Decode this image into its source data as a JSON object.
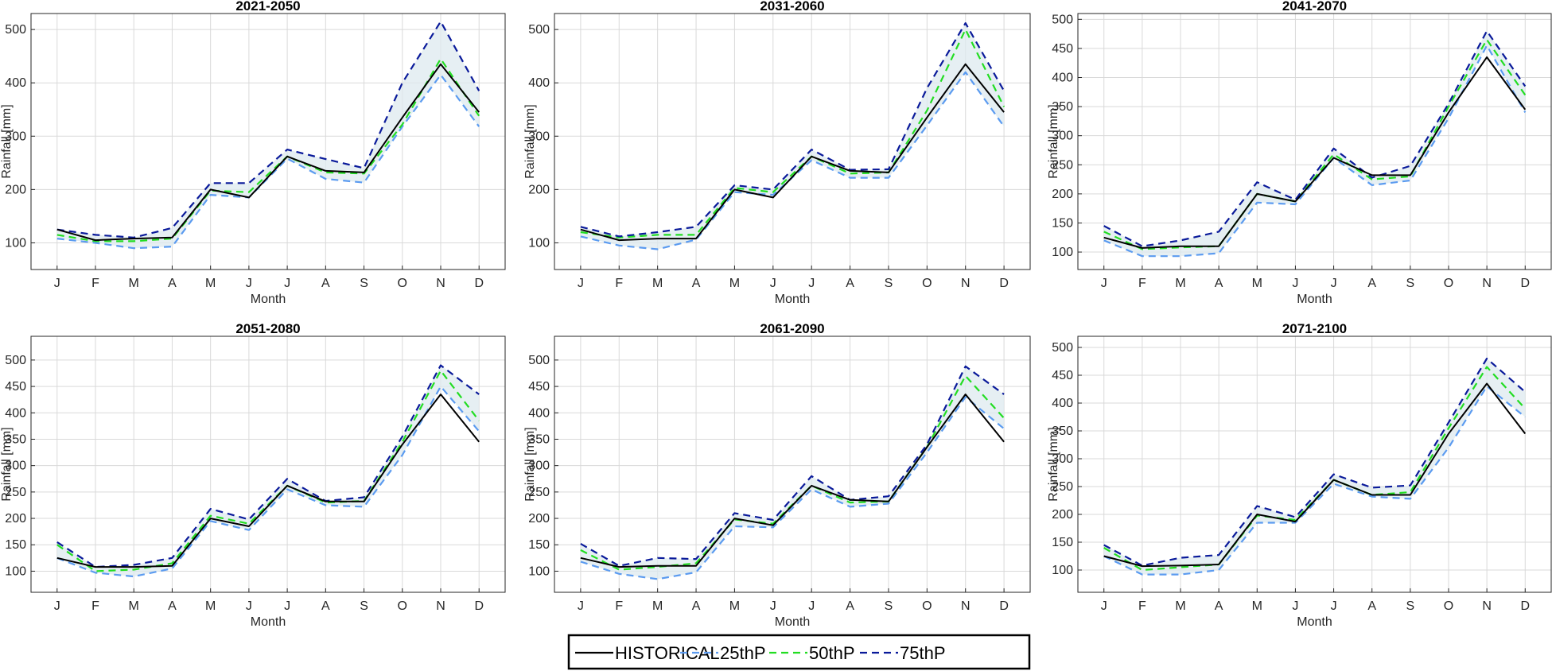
{
  "legend": {
    "entries": [
      {
        "label": "HISTORICAL",
        "color": "#000000",
        "dash": "solid"
      },
      {
        "label": "25thP",
        "color": "#5b9bf0",
        "dash": "dashed"
      },
      {
        "label": "50thP",
        "color": "#22dd22",
        "dash": "dashed"
      },
      {
        "label": "75thP",
        "color": "#0a1a9a",
        "dash": "dashed"
      }
    ]
  },
  "colors": {
    "historical": "#000000",
    "p25": "#5b9bf0",
    "p50": "#22dd22",
    "p75": "#0a1a9a",
    "band": "#dde9ef",
    "grid": "#d9d9d9",
    "axes": "#262626"
  },
  "chart_data": [
    {
      "type": "line",
      "title": "2021-2050",
      "xlabel": "Month",
      "ylabel": "Rainfall [mm]",
      "categories": [
        "J",
        "F",
        "M",
        "A",
        "M",
        "J",
        "J",
        "A",
        "S",
        "O",
        "N",
        "D"
      ],
      "ylim": [
        50,
        530
      ],
      "yticks": [
        100,
        200,
        300,
        400,
        500
      ],
      "grid": true,
      "shaded_band": "between 25thP and 75thP",
      "series": [
        {
          "name": "HISTORICAL",
          "values": [
            125,
            105,
            108,
            110,
            200,
            185,
            262,
            235,
            232,
            335,
            435,
            345
          ]
        },
        {
          "name": "25thP",
          "values": [
            108,
            100,
            90,
            93,
            190,
            185,
            258,
            220,
            213,
            318,
            415,
            318
          ]
        },
        {
          "name": "50thP",
          "values": [
            115,
            103,
            103,
            108,
            198,
            195,
            262,
            232,
            230,
            322,
            445,
            338
          ]
        },
        {
          "name": "75thP",
          "values": [
            125,
            115,
            110,
            128,
            212,
            212,
            275,
            257,
            240,
            400,
            515,
            385
          ]
        }
      ]
    },
    {
      "type": "line",
      "title": "2031-2060",
      "xlabel": "Month",
      "ylabel": "Rainfall [mm]",
      "categories": [
        "J",
        "F",
        "M",
        "A",
        "M",
        "J",
        "J",
        "A",
        "S",
        "O",
        "N",
        "D"
      ],
      "ylim": [
        50,
        530
      ],
      "yticks": [
        100,
        200,
        300,
        400,
        500
      ],
      "grid": true,
      "shaded_band": "between 25thP and 75thP",
      "series": [
        {
          "name": "HISTORICAL",
          "values": [
            125,
            105,
            108,
            108,
            200,
            185,
            262,
            235,
            232,
            335,
            435,
            345
          ]
        },
        {
          "name": "25thP",
          "values": [
            112,
            95,
            88,
            106,
            195,
            190,
            255,
            222,
            222,
            320,
            420,
            318
          ]
        },
        {
          "name": "50thP",
          "values": [
            120,
            110,
            115,
            115,
            203,
            195,
            262,
            230,
            232,
            348,
            500,
            355
          ]
        },
        {
          "name": "75thP",
          "values": [
            130,
            112,
            120,
            130,
            208,
            200,
            275,
            237,
            238,
            390,
            512,
            385
          ]
        }
      ]
    },
    {
      "type": "line",
      "title": "2041-2070",
      "xlabel": "Month",
      "ylabel": "Rainfall [mm]",
      "categories": [
        "J",
        "F",
        "M",
        "A",
        "M",
        "J",
        "J",
        "A",
        "S",
        "O",
        "N",
        "D"
      ],
      "ylim": [
        70,
        510
      ],
      "yticks": [
        100,
        150,
        200,
        250,
        300,
        350,
        400,
        450,
        500
      ],
      "grid": true,
      "shaded_band": "between 25thP and 75thP",
      "series": [
        {
          "name": "HISTORICAL",
          "values": [
            125,
            107,
            110,
            110,
            200,
            187,
            262,
            232,
            232,
            340,
            435,
            345
          ]
        },
        {
          "name": "25thP",
          "values": [
            120,
            93,
            93,
            98,
            185,
            182,
            262,
            215,
            223,
            330,
            455,
            340
          ]
        },
        {
          "name": "50thP",
          "values": [
            135,
            105,
            108,
            110,
            200,
            187,
            268,
            225,
            230,
            350,
            465,
            370
          ]
        },
        {
          "name": "75thP",
          "values": [
            145,
            110,
            120,
            135,
            220,
            190,
            278,
            228,
            248,
            355,
            480,
            385
          ]
        }
      ]
    },
    {
      "type": "line",
      "title": "2051-2080",
      "xlabel": "Month",
      "ylabel": "Rainfall [mm]",
      "categories": [
        "J",
        "F",
        "M",
        "A",
        "M",
        "J",
        "J",
        "A",
        "S",
        "O",
        "N",
        "D"
      ],
      "ylim": [
        60,
        545
      ],
      "yticks": [
        100,
        150,
        200,
        250,
        300,
        350,
        400,
        450,
        500
      ],
      "grid": true,
      "shaded_band": "between 25thP and 75thP",
      "series": [
        {
          "name": "HISTORICAL",
          "values": [
            125,
            108,
            108,
            110,
            200,
            185,
            262,
            232,
            232,
            340,
            435,
            345
          ]
        },
        {
          "name": "25thP",
          "values": [
            125,
            97,
            90,
            105,
            195,
            178,
            255,
            225,
            222,
            320,
            450,
            365
          ]
        },
        {
          "name": "50thP",
          "values": [
            150,
            100,
            103,
            115,
            205,
            190,
            262,
            230,
            233,
            345,
            480,
            385
          ]
        },
        {
          "name": "75thP",
          "values": [
            155,
            108,
            112,
            125,
            218,
            198,
            275,
            233,
            240,
            355,
            490,
            435
          ]
        }
      ]
    },
    {
      "type": "line",
      "title": "2061-2090",
      "xlabel": "Month",
      "ylabel": "Rainfall [mm]",
      "categories": [
        "J",
        "F",
        "M",
        "A",
        "M",
        "J",
        "J",
        "A",
        "S",
        "O",
        "N",
        "D"
      ],
      "ylim": [
        60,
        545
      ],
      "yticks": [
        100,
        150,
        200,
        250,
        300,
        350,
        400,
        450,
        500
      ],
      "grid": true,
      "shaded_band": "between 25thP and 75thP",
      "series": [
        {
          "name": "HISTORICAL",
          "values": [
            125,
            108,
            110,
            110,
            200,
            187,
            262,
            235,
            232,
            335,
            435,
            345
          ]
        },
        {
          "name": "25thP",
          "values": [
            118,
            95,
            85,
            98,
            185,
            183,
            255,
            222,
            228,
            325,
            430,
            370
          ]
        },
        {
          "name": "50thP",
          "values": [
            140,
            103,
            108,
            115,
            198,
            190,
            262,
            230,
            232,
            335,
            470,
            390
          ]
        },
        {
          "name": "75thP",
          "values": [
            152,
            110,
            125,
            123,
            210,
            197,
            280,
            235,
            242,
            340,
            488,
            435
          ]
        }
      ]
    },
    {
      "type": "line",
      "title": "2071-2100",
      "xlabel": "Month",
      "ylabel": "Rainfall [mm]",
      "categories": [
        "J",
        "F",
        "M",
        "A",
        "M",
        "J",
        "J",
        "A",
        "S",
        "O",
        "N",
        "D"
      ],
      "ylim": [
        60,
        520
      ],
      "yticks": [
        100,
        150,
        200,
        250,
        300,
        350,
        400,
        450,
        500
      ],
      "grid": true,
      "shaded_band": "between 25thP and 75thP",
      "series": [
        {
          "name": "HISTORICAL",
          "values": [
            125,
            107,
            108,
            110,
            200,
            187,
            262,
            235,
            235,
            345,
            435,
            345
          ]
        },
        {
          "name": "25thP",
          "values": [
            125,
            92,
            92,
            100,
            185,
            185,
            255,
            232,
            228,
            320,
            430,
            375
          ]
        },
        {
          "name": "50thP",
          "values": [
            140,
            100,
            105,
            110,
            198,
            190,
            262,
            235,
            240,
            355,
            465,
            390
          ]
        },
        {
          "name": "75thP",
          "values": [
            145,
            108,
            122,
            127,
            215,
            195,
            272,
            248,
            252,
            365,
            480,
            420
          ]
        }
      ]
    }
  ]
}
